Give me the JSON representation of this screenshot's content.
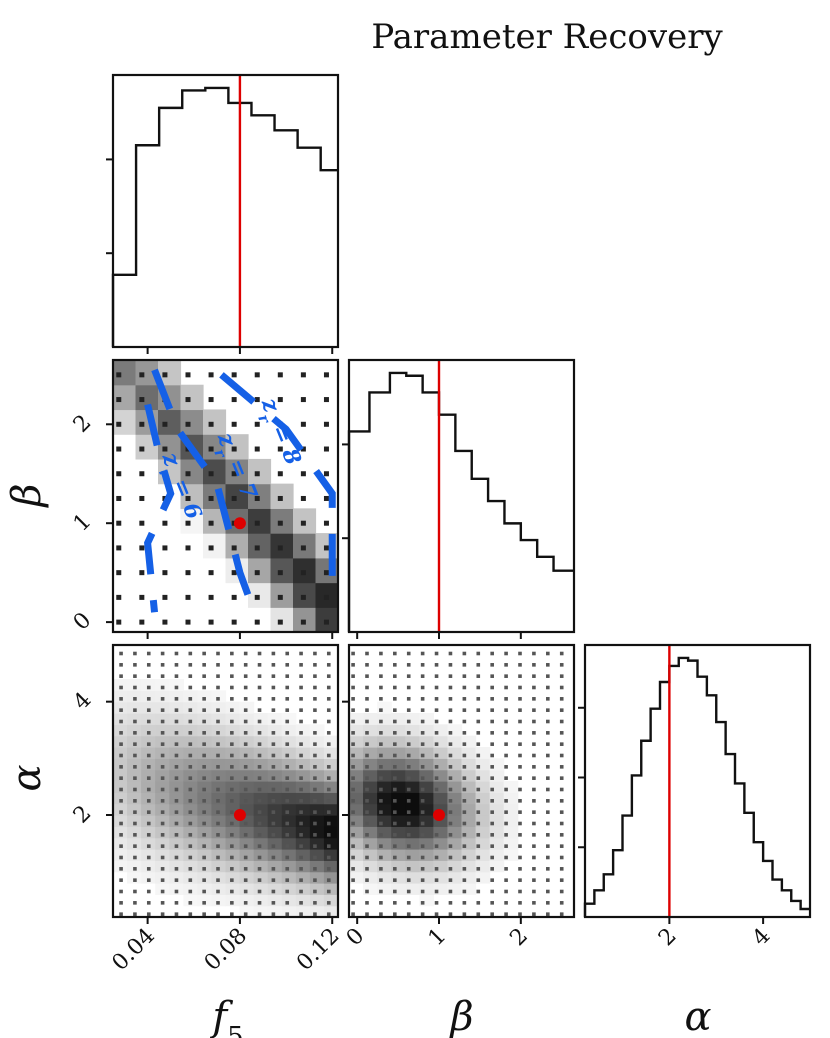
{
  "chart_data": {
    "type": "heatmap",
    "title": "Parameter Recovery",
    "parameters": [
      {
        "name": "f5",
        "label_base": "f",
        "label_sub": "5",
        "range": [
          0.025,
          0.1225
        ],
        "ticks": [
          0.04,
          0.08,
          0.12
        ],
        "tick_labels": [
          "0.04",
          "0.08",
          "0.12"
        ]
      },
      {
        "name": "beta",
        "label": "β",
        "range": [
          -0.1,
          2.65
        ],
        "ticks": [
          0,
          1,
          2
        ],
        "tick_labels": [
          "0",
          "1",
          "2"
        ]
      },
      {
        "name": "alpha",
        "label": "α",
        "range": [
          0.2,
          5.0
        ],
        "ticks": [
          2,
          4
        ],
        "tick_labels": [
          "2",
          "4"
        ]
      }
    ],
    "truth": {
      "f5": 0.08,
      "beta": 1.0,
      "alpha": 2.0
    },
    "truth_color": "#dd0000",
    "contour_color": "#1560e6",
    "histograms": {
      "f5": {
        "edges": [
          0.025,
          0.035,
          0.045,
          0.055,
          0.065,
          0.075,
          0.085,
          0.095,
          0.105,
          0.115,
          0.1225
        ],
        "values": [
          0.29,
          0.81,
          0.96,
          1.03,
          1.04,
          0.98,
          0.93,
          0.87,
          0.8,
          0.71
        ]
      },
      "beta": {
        "edges": [
          -0.1,
          0.15,
          0.4,
          0.6,
          0.8,
          1.0,
          1.2,
          1.4,
          1.6,
          1.8,
          2.0,
          2.2,
          2.4,
          2.65
        ],
        "values": [
          0.72,
          0.86,
          0.93,
          0.92,
          0.86,
          0.78,
          0.65,
          0.55,
          0.47,
          0.39,
          0.33,
          0.27,
          0.22
        ]
      },
      "alpha": {
        "edges": [
          0.2,
          0.4,
          0.6,
          0.8,
          1.0,
          1.2,
          1.4,
          1.6,
          1.8,
          2.0,
          2.2,
          2.4,
          2.6,
          2.8,
          3.0,
          3.2,
          3.4,
          3.6,
          3.8,
          4.0,
          4.2,
          4.4,
          4.6,
          4.8,
          5.0
        ],
        "values": [
          0.05,
          0.1,
          0.16,
          0.25,
          0.38,
          0.53,
          0.66,
          0.78,
          0.88,
          0.94,
          0.97,
          0.96,
          0.9,
          0.83,
          0.73,
          0.61,
          0.5,
          0.39,
          0.28,
          0.21,
          0.14,
          0.1,
          0.06,
          0.03
        ]
      }
    },
    "contours": [
      {
        "label": "z_r = 6",
        "points": [
          [
            0.04,
            2.2
          ],
          [
            0.045,
            1.7
          ],
          [
            0.05,
            1.3
          ],
          [
            0.04,
            0.8
          ],
          [
            0.043,
            0.1
          ]
        ]
      },
      {
        "label": "z_r = 7",
        "points": [
          [
            0.043,
            2.55
          ],
          [
            0.053,
            1.95
          ],
          [
            0.07,
            1.4
          ],
          [
            0.08,
            0.5
          ],
          [
            0.087,
            0.05
          ]
        ]
      },
      {
        "label": "z_r = 8",
        "points": [
          [
            0.072,
            2.5
          ],
          [
            0.1,
            1.95
          ],
          [
            0.12,
            1.3
          ],
          [
            0.12,
            0.3
          ]
        ]
      }
    ],
    "contour_labels": [
      {
        "text": "z_r = 6",
        "base": "z",
        "sub": "r",
        "rest": " = 6",
        "x": 0.052,
        "y": 1.35,
        "angle": 68
      },
      {
        "text": "z_r = 7",
        "base": "z",
        "sub": "r",
        "rest": " = 7",
        "x": 0.076,
        "y": 1.55,
        "angle": 68
      },
      {
        "text": "z_r = 8",
        "base": "z",
        "sub": "r",
        "rest": " = 8",
        "x": 0.095,
        "y": 1.9,
        "angle": 68
      }
    ],
    "panels": [
      {
        "x": "f5",
        "y": "beta",
        "grid_x": [
          0.0275,
          0.0375,
          0.0475,
          0.0575,
          0.0675,
          0.0775,
          0.0875,
          0.0975,
          0.1075,
          0.1175
        ],
        "grid_y": [
          0.0,
          0.25,
          0.5,
          0.75,
          1.0,
          1.25,
          1.5,
          1.75,
          2.0,
          2.25,
          2.5
        ]
      },
      {
        "x": "f5",
        "y": "alpha"
      },
      {
        "x": "beta",
        "y": "alpha"
      }
    ]
  }
}
